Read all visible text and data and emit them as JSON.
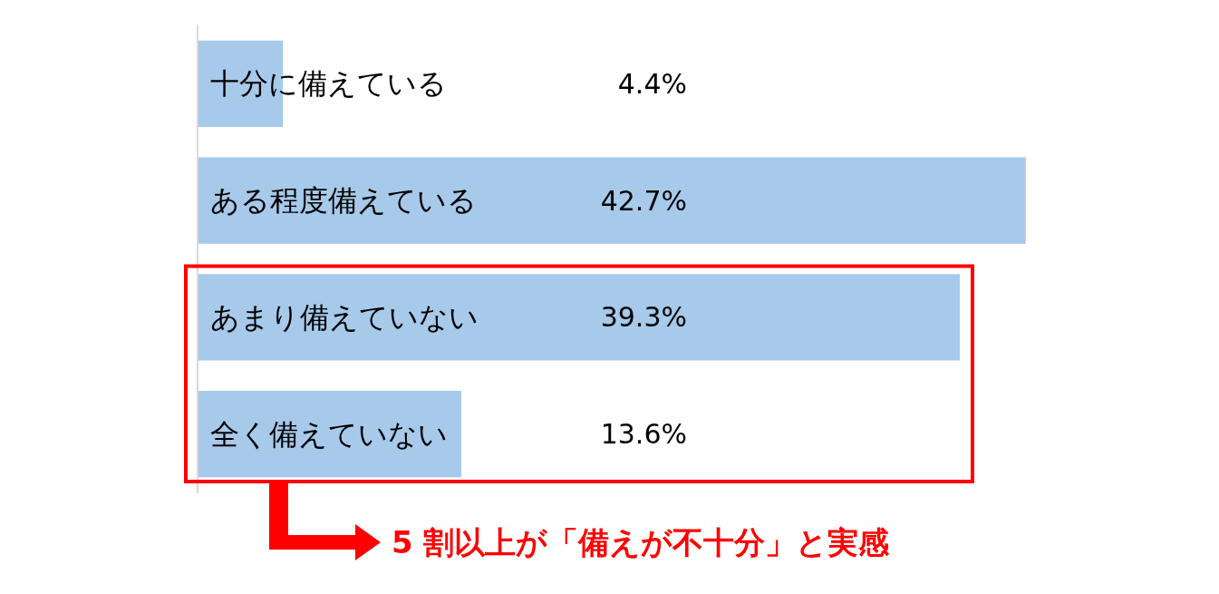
{
  "chart_data": {
    "type": "bar",
    "orientation": "horizontal",
    "categories": [
      "十分に備えている",
      "ある程度備えている",
      "あまり備えていない",
      "全く備えていない"
    ],
    "values": [
      4.4,
      42.7,
      39.3,
      13.6
    ],
    "value_labels": [
      "4.4%",
      "42.7%",
      "39.3%",
      "13.6%"
    ],
    "color": "#a7c9ea",
    "annotations": [
      "5 割以上が「備えが不十分」と実感"
    ]
  }
}
